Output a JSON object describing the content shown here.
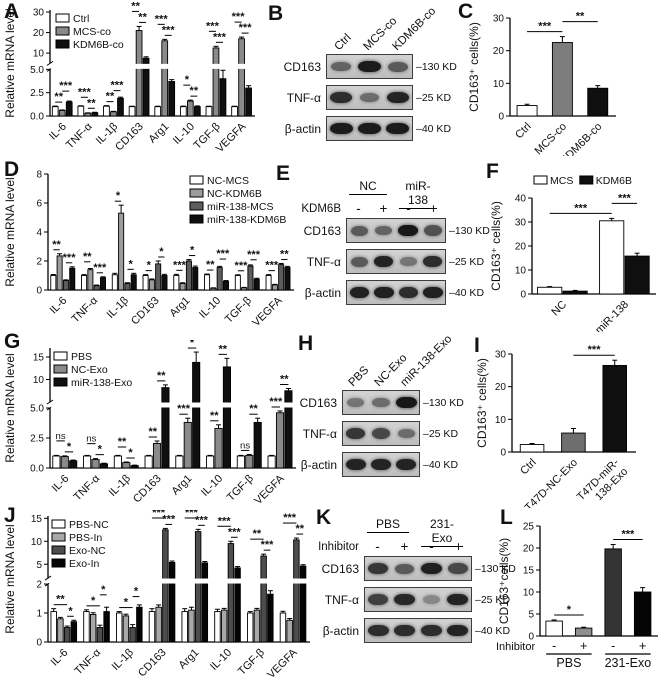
{
  "panel_letters": [
    "A",
    "B",
    "C",
    "D",
    "E",
    "F",
    "G",
    "H",
    "I",
    "J",
    "K",
    "L"
  ],
  "chart_data": [
    {
      "panel": "A",
      "type": "bar",
      "ylabel": "Relative mRNA level",
      "categories": [
        "IL-6",
        "TNF-α",
        "IL-1β",
        "CD163",
        "Arg1",
        "IL-10",
        "TGF-β",
        "VEGFA"
      ],
      "series": [
        {
          "name": "Ctrl",
          "color": "#ffffff",
          "values": [
            1.0,
            1.05,
            1.05,
            1.0,
            1.0,
            1.0,
            1.0,
            1.0
          ],
          "errors": [
            0.06,
            0.05,
            0.06,
            0.05,
            0.05,
            0.06,
            0.05,
            0.05
          ]
        },
        {
          "name": "MCS-co",
          "color": "#8a8a8a",
          "values": [
            0.6,
            0.3,
            0.45,
            21.0,
            16.0,
            1.6,
            12.5,
            17.0
          ],
          "errors": [
            0.05,
            0.04,
            0.05,
            2.0,
            0.7,
            0.1,
            0.8,
            0.8
          ]
        },
        {
          "name": "KDM6B-co",
          "color": "#0f0f0f",
          "values": [
            1.5,
            0.35,
            1.9,
            7.5,
            3.7,
            1.0,
            4.0,
            3.0
          ],
          "errors": [
            0.1,
            0.05,
            0.12,
            0.7,
            0.2,
            0.08,
            0.9,
            0.25
          ]
        }
      ],
      "axis": {
        "type": "broken",
        "lower": {
          "max": 5,
          "ticks": [
            0,
            2.5,
            5
          ],
          "labels": [
            "0.0",
            "2.5",
            "5.0"
          ]
        },
        "upper": {
          "min": 5,
          "max": 31,
          "ticks": [
            10,
            20,
            30
          ],
          "labels": [
            "10",
            "20",
            "30"
          ]
        }
      },
      "sig_pairs": [
        [
          0,
          1
        ],
        [
          1,
          2
        ]
      ],
      "sig": [
        [
          "**",
          "***"
        ],
        [
          "***",
          "**"
        ],
        [
          "**",
          "***"
        ],
        [
          "**",
          "**"
        ],
        [
          "***",
          "***"
        ],
        [
          "*",
          "**"
        ],
        [
          "***",
          "***"
        ],
        [
          "***",
          "***"
        ]
      ],
      "legend": {
        "layout": "vertical"
      }
    },
    {
      "panel": "C",
      "type": "bar",
      "ylabel": "CD163⁺ cells(%)",
      "categories": [
        "Ctrl",
        "MCS-co",
        "KDM6B-co"
      ],
      "values": [
        3.2,
        22.5,
        8.5
      ],
      "errors": [
        0.4,
        1.8,
        0.8
      ],
      "colors": [
        "#ffffff",
        "#7d7d7d",
        "#0f0f0f"
      ],
      "axis": {
        "type": "linear",
        "max": 30,
        "ticks": [
          0,
          10,
          20,
          30
        ],
        "labels": [
          "0",
          "10",
          "20",
          "30"
        ]
      },
      "sig_spans": [
        {
          "a": 0,
          "b": 1,
          "label": "***"
        },
        {
          "a": 1,
          "b": 2,
          "label": "**"
        }
      ]
    },
    {
      "panel": "D",
      "type": "bar",
      "ylabel": "Relative mRNA level",
      "categories": [
        "IL-6",
        "TNF-α",
        "IL-1β",
        "CD163",
        "Arg1",
        "IL-10",
        "TGF-β",
        "VEGFA"
      ],
      "series": [
        {
          "name": "NC-MCS",
          "color": "#ffffff",
          "values": [
            1.0,
            1.0,
            1.05,
            1.0,
            1.0,
            1.05,
            1.0,
            1.0
          ],
          "errors": [
            0.07,
            0.06,
            0.1,
            0.06,
            0.08,
            0.05,
            0.05,
            0.06
          ]
        },
        {
          "name": "NC-KDM6B",
          "color": "#9c9c9c",
          "values": [
            2.35,
            1.4,
            5.3,
            0.7,
            0.45,
            0.12,
            0.15,
            0.35
          ],
          "errors": [
            0.15,
            0.08,
            0.55,
            0.06,
            0.05,
            0.03,
            0.03,
            0.04
          ]
        },
        {
          "name": "miR-138-MCS",
          "color": "#5d5d5d",
          "values": [
            0.65,
            0.3,
            0.45,
            1.8,
            2.0,
            1.55,
            1.65,
            1.75
          ],
          "errors": [
            0.05,
            0.04,
            0.05,
            0.2,
            0.1,
            0.08,
            0.08,
            0.08
          ]
        },
        {
          "name": "miR-138-KDM6B",
          "color": "#0f0f0f",
          "values": [
            1.5,
            0.85,
            1.05,
            1.0,
            1.55,
            0.6,
            0.75,
            1.55
          ],
          "errors": [
            0.1,
            0.06,
            0.1,
            0.08,
            0.1,
            0.05,
            0.06,
            0.08
          ]
        }
      ],
      "axis": {
        "type": "linear",
        "max": 8,
        "ticks": [
          0,
          2,
          4,
          6,
          8
        ],
        "labels": [
          "0",
          "2",
          "4",
          "6",
          "8"
        ]
      },
      "sig_pairs": [
        [
          0,
          1
        ],
        [
          2,
          3
        ]
      ],
      "sig": [
        [
          "**",
          "***"
        ],
        [
          "**",
          "***"
        ],
        [
          "*",
          "*"
        ],
        [
          "*",
          "*"
        ],
        [
          "***",
          "*"
        ],
        [
          "**",
          "***"
        ],
        [
          "***",
          "***"
        ],
        [
          "***",
          "**"
        ]
      ],
      "legend": {
        "layout": "vertical"
      }
    },
    {
      "panel": "F",
      "type": "bar",
      "ylabel": "CD163⁺ cells(%)",
      "categories": [
        "NC",
        "miR-138"
      ],
      "series": [
        {
          "name": "MCS",
          "color": "#ffffff",
          "values": [
            2.8,
            30.5
          ],
          "errors": [
            0.3,
            1.0
          ]
        },
        {
          "name": "KDM6B",
          "color": "#0f0f0f",
          "values": [
            1.2,
            15.8
          ],
          "errors": [
            0.3,
            1.2
          ]
        }
      ],
      "axis": {
        "type": "linear",
        "max": 40,
        "ticks": [
          0,
          10,
          20,
          30,
          40
        ],
        "labels": [
          "0",
          "10",
          "20",
          "30",
          "40"
        ]
      },
      "sig_spans": [
        {
          "a": 0,
          "b": 2,
          "label": "***"
        },
        {
          "a": 2,
          "b": 3,
          "label": "***"
        }
      ],
      "legend": {
        "layout": "horizontal"
      }
    },
    {
      "panel": "G",
      "type": "bar",
      "ylabel": "Relative mRNA level",
      "categories": [
        "IL-6",
        "TNF-α",
        "IL-1β",
        "CD163",
        "Arg1",
        "IL-10",
        "TGF-β",
        "VEGFA"
      ],
      "series": [
        {
          "name": "PBS",
          "color": "#ffffff",
          "values": [
            1.0,
            1.0,
            1.0,
            1.0,
            1.0,
            1.0,
            1.0,
            1.0
          ],
          "errors": [
            0.05,
            0.05,
            0.05,
            0.05,
            0.05,
            0.05,
            0.05,
            0.05
          ]
        },
        {
          "name": "NC-Exo",
          "color": "#8a8a8a",
          "values": [
            0.95,
            0.7,
            0.45,
            2.05,
            3.8,
            3.3,
            1.05,
            4.6
          ],
          "errors": [
            0.06,
            0.08,
            0.05,
            0.2,
            0.35,
            0.3,
            0.08,
            0.15
          ]
        },
        {
          "name": "miR-138-Exo",
          "color": "#0f0f0f",
          "values": [
            0.6,
            0.35,
            0.2,
            8.2,
            13.8,
            12.8,
            3.8,
            7.5
          ],
          "errors": [
            0.06,
            0.05,
            0.04,
            0.6,
            2.3,
            1.9,
            0.35,
            0.5
          ]
        }
      ],
      "axis": {
        "type": "broken",
        "lower": {
          "max": 5,
          "ticks": [
            0,
            2.5,
            5
          ],
          "labels": [
            "0.0",
            "2.5",
            "5.0"
          ]
        },
        "upper": {
          "min": 5,
          "max": 17,
          "ticks": [
            10,
            15
          ],
          "labels": [
            "10",
            "15"
          ]
        }
      },
      "sig_pairs": [
        [
          0,
          1
        ],
        [
          1,
          2
        ]
      ],
      "sig": [
        [
          "ns",
          "*"
        ],
        [
          "ns",
          "*"
        ],
        [
          "**",
          "*"
        ],
        [
          "**",
          "**"
        ],
        [
          "***",
          "*"
        ],
        [
          "**",
          "**"
        ],
        [
          "ns",
          "**"
        ],
        [
          "***",
          "**"
        ]
      ],
      "legend": {
        "layout": "vertical"
      }
    },
    {
      "panel": "I",
      "type": "bar",
      "ylabel": "CD163⁺ cells(%)",
      "categories": [
        "Ctrl",
        "T47D-NC-Exo",
        "T47D-miR-\n138-Exo"
      ],
      "values": [
        2.3,
        5.8,
        26.5
      ],
      "errors": [
        0.3,
        1.4,
        1.6
      ],
      "colors": [
        "#ffffff",
        "#6e6e6e",
        "#0f0f0f"
      ],
      "axis": {
        "type": "linear",
        "max": 30,
        "ticks": [
          0,
          10,
          20,
          30
        ],
        "labels": [
          "0",
          "10",
          "20",
          "30"
        ]
      },
      "sig_spans": [
        {
          "a": 1,
          "b": 2,
          "label": "***"
        }
      ]
    },
    {
      "panel": "J",
      "type": "bar",
      "ylabel": "Relative mRNA level",
      "categories": [
        "IL-6",
        "TNF-α",
        "IL-1β",
        "CD163",
        "Arg1",
        "IL-10",
        "TGF-β",
        "VEGFA"
      ],
      "series": [
        {
          "name": "PBS-NC",
          "color": "#ffffff",
          "values": [
            1.05,
            1.05,
            1.0,
            1.05,
            1.05,
            1.05,
            1.0,
            1.0
          ],
          "errors": [
            0.1,
            0.06,
            0.05,
            0.1,
            0.1,
            0.08,
            0.05,
            0.06
          ]
        },
        {
          "name": "PBS-In",
          "color": "#a8a8a8",
          "values": [
            0.8,
            0.95,
            0.9,
            1.2,
            1.1,
            1.1,
            1.1,
            0.75
          ],
          "errors": [
            0.05,
            0.06,
            0.06,
            0.08,
            0.1,
            0.06,
            0.06,
            0.06
          ]
        },
        {
          "name": "Exo-NC",
          "color": "#4d4d4d",
          "values": [
            0.5,
            0.5,
            0.5,
            12.5,
            12.1,
            9.5,
            6.8,
            10.3
          ],
          "errors": [
            0.05,
            0.08,
            0.1,
            0.3,
            0.5,
            0.5,
            0.4,
            0.4
          ]
        },
        {
          "name": "Exo-In",
          "color": "#050505",
          "values": [
            0.7,
            1.05,
            1.2,
            5.4,
            5.3,
            4.2,
            1.65,
            4.6
          ],
          "errors": [
            0.05,
            0.15,
            0.08,
            0.3,
            0.3,
            0.3,
            0.12,
            0.3
          ]
        }
      ],
      "axis": {
        "type": "broken",
        "lower": {
          "max": 2,
          "ticks": [
            0,
            1,
            2
          ],
          "labels": [
            "0",
            "1",
            "2"
          ]
        },
        "upper": {
          "min": 2,
          "max": 15.5,
          "ticks": [
            5,
            10,
            15
          ],
          "labels": [
            "5",
            "10",
            "15"
          ]
        }
      },
      "sig_pairs": [
        [
          0,
          2
        ],
        [
          2,
          3
        ]
      ],
      "sig": [
        [
          "**",
          "*"
        ],
        [
          "*",
          "*"
        ],
        [
          "*",
          "*"
        ],
        [
          "***",
          "***"
        ],
        [
          "***",
          "***"
        ],
        [
          "***",
          "***"
        ],
        [
          "**",
          "***"
        ],
        [
          "***",
          "**"
        ]
      ],
      "legend": {
        "layout": "vertical"
      }
    },
    {
      "panel": "L",
      "type": "bar",
      "ylabel": "CD163⁺cells(%)",
      "categories": [
        "-",
        "+",
        "-",
        "+"
      ],
      "values": [
        3.4,
        1.8,
        19.8,
        10.0
      ],
      "errors": [
        0.25,
        0.2,
        1.0,
        1.0
      ],
      "colors": [
        "#ffffff",
        "#8f8f8f",
        "#343434",
        "#050505"
      ],
      "axis": {
        "type": "linear",
        "max": 25,
        "ticks": [
          0,
          5,
          10,
          15,
          20,
          25
        ],
        "labels": [
          "0",
          "5",
          "10",
          "15",
          "20",
          "25"
        ]
      },
      "sig_spans": [
        {
          "a": 0,
          "b": 1,
          "label": "*"
        },
        {
          "a": 2,
          "b": 3,
          "label": "***"
        }
      ],
      "xaxis": {
        "type": "conditions",
        "row_label": "Inhibitor",
        "values": [
          "-",
          "+",
          "-",
          "+"
        ],
        "groups": [
          {
            "label": "PBS",
            "from": 0,
            "to": 1
          },
          {
            "label": "231-Exo",
            "from": 2,
            "to": 3
          }
        ]
      }
    }
  ],
  "blots": [
    {
      "panel": "B",
      "lanes": [
        "Ctrl",
        "MCS-co",
        "KDM6B-co"
      ],
      "rows": [
        {
          "label": "CD163",
          "marker": "–130 KD",
          "bands": [
            0.55,
            0.95,
            0.6
          ]
        },
        {
          "label": "TNF-α",
          "marker": "–25 KD",
          "bands": [
            0.85,
            0.5,
            0.9
          ]
        },
        {
          "label": "β-actin",
          "marker": "–40 KD",
          "bands": [
            0.95,
            0.95,
            0.95
          ]
        }
      ]
    },
    {
      "panel": "E",
      "groups": [
        "NC",
        "miR-138"
      ],
      "condition": {
        "label": "KDM6B",
        "values": [
          "-",
          "+",
          "-",
          "+"
        ]
      },
      "rows": [
        {
          "label": "CD163",
          "marker": "–130 KD",
          "bands": [
            0.6,
            0.55,
            0.97,
            0.65
          ]
        },
        {
          "label": "TNF-α",
          "marker": "–25 KD",
          "bands": [
            0.6,
            0.9,
            0.45,
            0.85
          ]
        },
        {
          "label": "β-actin",
          "marker": "–40 KD",
          "bands": [
            0.92,
            0.92,
            0.85,
            0.92
          ]
        }
      ]
    },
    {
      "panel": "H",
      "lanes": [
        "PBS",
        "NC-Exo",
        "miR-138-Exo"
      ],
      "rows": [
        {
          "label": "CD163",
          "marker": "–130 KD",
          "bands": [
            0.45,
            0.5,
            0.97
          ]
        },
        {
          "label": "TNF-α",
          "marker": "–25 KD",
          "bands": [
            0.8,
            0.7,
            0.5
          ]
        },
        {
          "label": "β-actin",
          "marker": "–40 KD",
          "bands": [
            0.9,
            0.9,
            0.9
          ]
        }
      ]
    },
    {
      "panel": "K",
      "groups": [
        "PBS",
        "231-Exo"
      ],
      "condition": {
        "label": "Inhibitor",
        "values": [
          "-",
          "+",
          "-",
          "+"
        ]
      },
      "rows": [
        {
          "label": "CD163",
          "marker": "–130 KD",
          "bands": [
            0.8,
            0.6,
            0.92,
            0.7
          ]
        },
        {
          "label": "TNF-α",
          "marker": "–25 KD",
          "bands": [
            0.75,
            0.88,
            0.35,
            0.9
          ]
        },
        {
          "label": "β-actin",
          "marker": "–40 KD",
          "bands": [
            0.85,
            0.85,
            0.85,
            0.9
          ]
        }
      ]
    }
  ]
}
